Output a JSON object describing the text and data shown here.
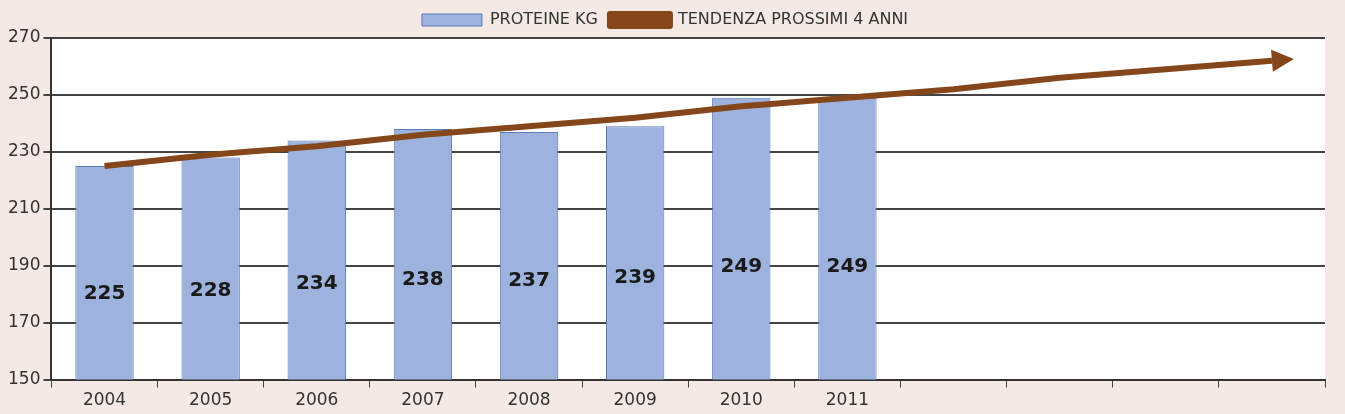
{
  "chart_data": {
    "type": "bar",
    "categories": [
      "2004",
      "2005",
      "2006",
      "2007",
      "2008",
      "2009",
      "2010",
      "2011",
      null,
      null,
      null,
      null
    ],
    "series": [
      {
        "name": "PROTEINE KG",
        "color": "#9db2dc",
        "values": [
          225,
          228,
          234,
          238,
          237,
          239,
          249,
          249,
          null,
          null,
          null,
          null
        ],
        "value_labels": [
          "225",
          "228",
          "234",
          "238",
          "237",
          "239",
          "249",
          "249",
          null,
          null,
          null,
          null
        ]
      },
      {
        "name": "TENDENZA PROSSIMI 4 ANNI",
        "type": "line",
        "color": "#84461a",
        "values": [
          225,
          229,
          232,
          236,
          239,
          242,
          246,
          249,
          252,
          256,
          259,
          262
        ]
      }
    ],
    "ylim": [
      150,
      270
    ],
    "yticks": [
      150,
      170,
      190,
      210,
      230,
      250,
      270
    ],
    "grid": "y",
    "legend": "top",
    "marker": "none"
  }
}
